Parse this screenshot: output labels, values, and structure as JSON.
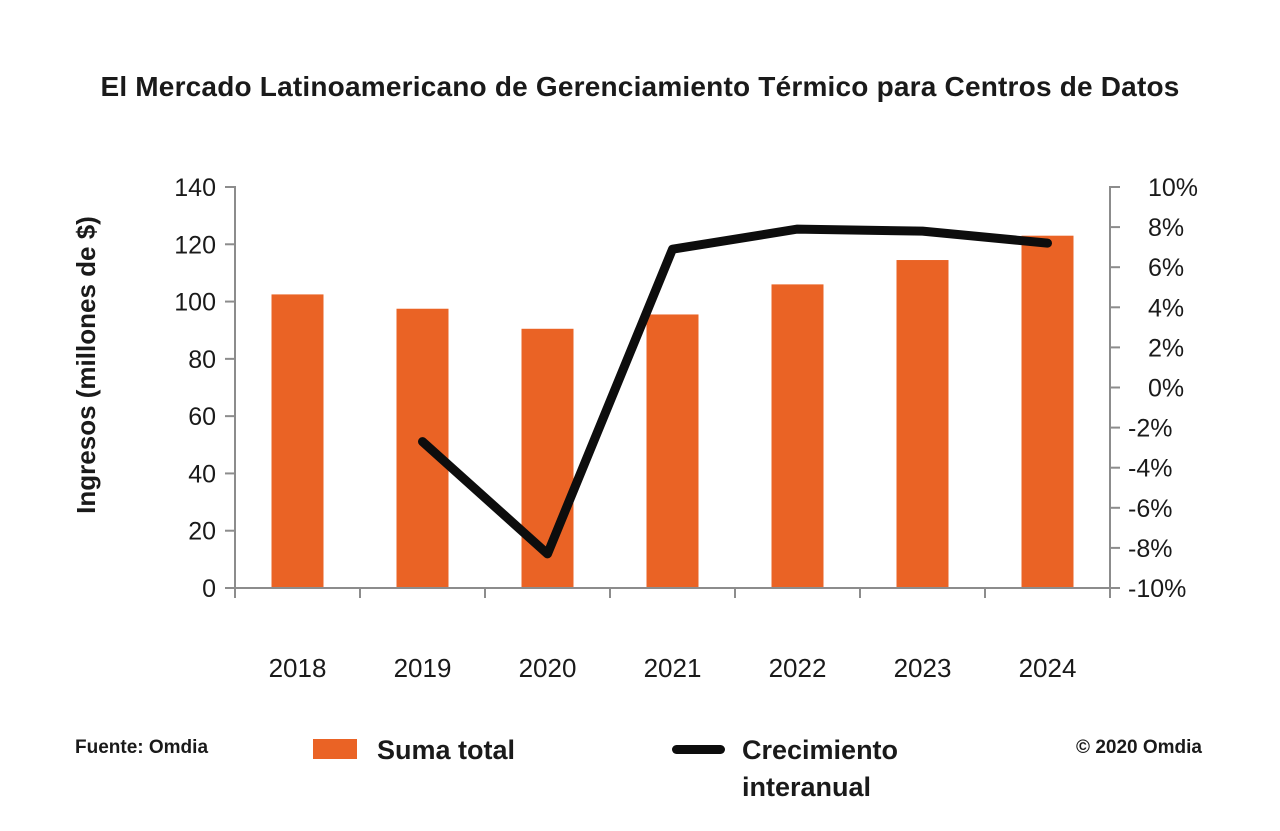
{
  "title": "El Mercado Latinoamericano de Gerenciamiento Térmico para Centros de Datos",
  "source_note": "Fuente: Omdia",
  "copyright": "© 2020 Omdia",
  "colors": {
    "bar": "#EA6325",
    "line": "#0D0D0D",
    "axis": "#8C8C8C",
    "text": "#1A1A1A"
  },
  "legend": [
    {
      "swatch": "bar",
      "label": "Suma total"
    },
    {
      "swatch": "line",
      "label": "Crecimiento interanual"
    }
  ],
  "chart_data": {
    "type": "bar",
    "subtype": "bar+line combo, dual axis",
    "categories": [
      "2018",
      "2019",
      "2020",
      "2021",
      "2022",
      "2023",
      "2024"
    ],
    "series": [
      {
        "name": "Suma total",
        "type": "bar",
        "axis": "left",
        "color": "#EA6325",
        "values": [
          102.5,
          97.5,
          90.5,
          95.5,
          106,
          114.5,
          123
        ]
      },
      {
        "name": "Crecimiento interanual",
        "type": "line",
        "axis": "right",
        "color": "#0D0D0D",
        "values": [
          null,
          -2.7,
          -8.3,
          6.9,
          7.9,
          7.8,
          7.2
        ]
      }
    ],
    "left_axis": {
      "label": "Ingresos (millones de $)",
      "min": 0,
      "max": 140,
      "step": 20,
      "suffix": ""
    },
    "right_axis": {
      "label": "",
      "min": -10,
      "max": 10,
      "step": 2,
      "suffix": "%"
    },
    "grid": false,
    "legend_position": "bottom"
  }
}
